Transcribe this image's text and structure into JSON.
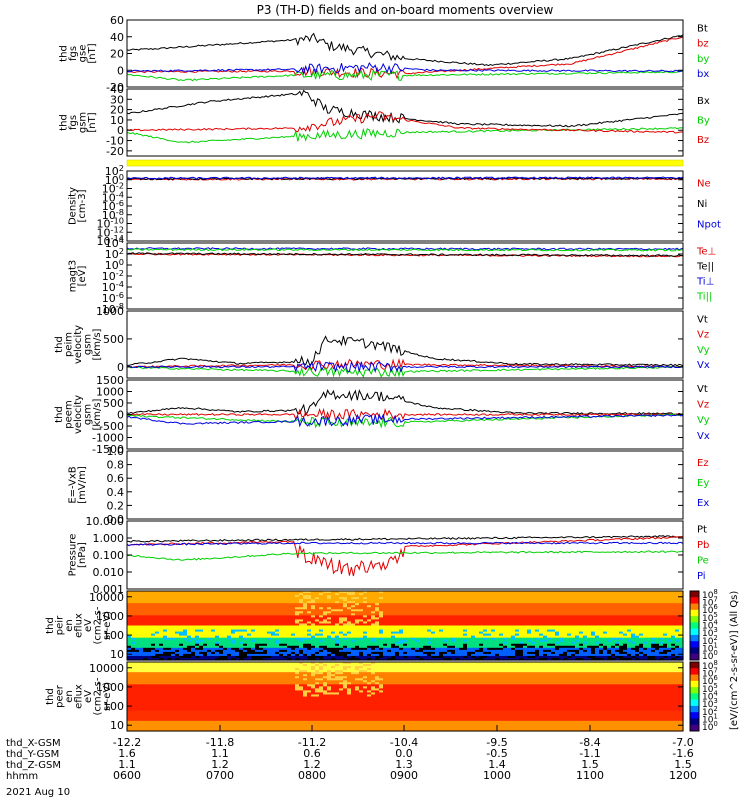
{
  "title": "P3 (TH-D) fields and on-board moments overview",
  "date_label": "2021 Aug 10",
  "colors": {
    "black": "#000000",
    "red": "#e00000",
    "green": "#00d000",
    "blue": "#0000e0",
    "yellow": "#ffff00",
    "frame": "#000000"
  },
  "chart_data": [
    {
      "type": "line",
      "id": "fgs-gse",
      "ylabel": [
        "thd",
        "fgs",
        "gse",
        "[nT]"
      ],
      "ylim": [
        -20,
        60
      ],
      "ticks": [
        "60",
        "40",
        "20",
        "0",
        "-20"
      ],
      "tick_values": [
        60,
        40,
        20,
        0,
        -20
      ],
      "series": [
        {
          "name": "Bt",
          "color": "#000000",
          "keypoints": [
            [
              0,
              24
            ],
            [
              0.06,
              26
            ],
            [
              0.2,
              32
            ],
            [
              0.34,
              38
            ],
            [
              0.36,
              30
            ],
            [
              0.5,
              14
            ],
            [
              0.65,
              6
            ],
            [
              0.8,
              14
            ],
            [
              1.0,
              42
            ]
          ]
        },
        {
          "name": "bz",
          "color": "#e00000",
          "keypoints": [
            [
              0,
              -2
            ],
            [
              0.3,
              -1
            ],
            [
              0.5,
              -4
            ],
            [
              0.8,
              8
            ],
            [
              1.0,
              40
            ]
          ]
        },
        {
          "name": "by",
          "color": "#00d000",
          "keypoints": [
            [
              0,
              -5
            ],
            [
              0.1,
              -12
            ],
            [
              0.3,
              -6
            ],
            [
              0.5,
              -6
            ],
            [
              1.0,
              -2
            ]
          ]
        },
        {
          "name": "bx",
          "color": "#0000e0",
          "keypoints": [
            [
              0,
              -1
            ],
            [
              0.3,
              1
            ],
            [
              0.45,
              4
            ],
            [
              0.55,
              0
            ],
            [
              1.0,
              -1
            ]
          ]
        }
      ],
      "legend": [
        "Bt",
        "bz",
        "by",
        "bx"
      ]
    },
    {
      "type": "line",
      "id": "fgs-gsm",
      "ylabel": [
        "thd",
        "fgs",
        "gsm",
        "[nT]"
      ],
      "ylim": [
        -25,
        40
      ],
      "ticks": [
        "40",
        "30",
        "20",
        "10",
        "0",
        "-10",
        "-20"
      ],
      "tick_values": [
        40,
        30,
        20,
        10,
        0,
        -10,
        -20
      ],
      "series": [
        {
          "name": "Bx",
          "color": "#000000",
          "keypoints": [
            [
              0,
              16
            ],
            [
              0.05,
              20
            ],
            [
              0.15,
              28
            ],
            [
              0.32,
              36
            ],
            [
              0.36,
              20
            ],
            [
              0.45,
              14
            ],
            [
              0.6,
              6
            ],
            [
              0.8,
              4
            ],
            [
              1.0,
              16
            ]
          ]
        },
        {
          "name": "By",
          "color": "#00d000",
          "keypoints": [
            [
              0,
              -2
            ],
            [
              0.1,
              -12
            ],
            [
              0.3,
              -6
            ],
            [
              0.5,
              -2
            ],
            [
              1.0,
              2
            ]
          ]
        },
        {
          "name": "Bz",
          "color": "#e00000",
          "keypoints": [
            [
              0,
              0
            ],
            [
              0.3,
              2
            ],
            [
              0.45,
              14
            ],
            [
              0.6,
              2
            ],
            [
              1.0,
              -2
            ]
          ]
        }
      ],
      "legend": [
        "Bx",
        "By",
        "Bz"
      ]
    },
    {
      "type": "line",
      "id": "density",
      "log": true,
      "ylabel": [
        "Density",
        "[cm-3]"
      ],
      "ylim": [
        -14,
        2
      ],
      "ticks": [
        "10^2",
        "10^0",
        "10^-2",
        "10^-4",
        "10^-6",
        "10^-8",
        "10^-10",
        "10^-12",
        "10^-14"
      ],
      "tick_values": [
        2,
        0,
        -2,
        -4,
        -6,
        -8,
        -10,
        -12,
        -14
      ],
      "series": [
        {
          "name": "Ne",
          "color": "#e00000",
          "keypoints": [
            [
              0,
              0.1
            ],
            [
              1.0,
              0.2
            ]
          ]
        },
        {
          "name": "Ni",
          "color": "#000000",
          "keypoints": [
            [
              0,
              0.2
            ],
            [
              1.0,
              0.3
            ]
          ]
        },
        {
          "name": "Npot",
          "color": "#0000e0",
          "keypoints": [
            [
              0,
              0.35
            ],
            [
              1.0,
              0.45
            ]
          ]
        }
      ],
      "legend": [
        "Ne",
        "Ni",
        "Npot"
      ]
    },
    {
      "type": "line",
      "id": "temperature",
      "log": true,
      "ylabel": [
        "magt3",
        "[eV]"
      ],
      "ylim": [
        -8,
        4
      ],
      "ticks": [
        "10^4",
        "10^2",
        "10^0",
        "10^-2",
        "10^-4",
        "10^-6",
        "10^-8"
      ],
      "tick_values": [
        4,
        2,
        0,
        -2,
        -4,
        -6,
        -8
      ],
      "series": [
        {
          "name": "Te⊥",
          "color": "#e00000",
          "keypoints": [
            [
              0,
              2.0
            ],
            [
              1.0,
              1.6
            ]
          ]
        },
        {
          "name": "Te||",
          "color": "#000000",
          "keypoints": [
            [
              0,
              2.1
            ],
            [
              1.0,
              1.7
            ]
          ]
        },
        {
          "name": "Ti⊥",
          "color": "#0000e0",
          "keypoints": [
            [
              0,
              3.0
            ],
            [
              1.0,
              2.9
            ]
          ]
        },
        {
          "name": "Ti||",
          "color": "#00d000",
          "keypoints": [
            [
              0,
              2.8
            ],
            [
              1.0,
              2.7
            ]
          ]
        }
      ],
      "legend": [
        "Te⊥",
        "Te||",
        "Ti⊥",
        "Ti||"
      ]
    },
    {
      "type": "line",
      "id": "peim-velocity",
      "ylabel": [
        "thd",
        "peim",
        "velocity",
        "gsm",
        "[km/s]"
      ],
      "ylim": [
        -200,
        1000
      ],
      "ticks": [
        "1000",
        "500",
        "0"
      ],
      "tick_values": [
        1000,
        500,
        0
      ],
      "series": [
        {
          "name": "Vt",
          "color": "#000000",
          "keypoints": [
            [
              0,
              30
            ],
            [
              0.1,
              150
            ],
            [
              0.2,
              60
            ],
            [
              0.33,
              100
            ],
            [
              0.36,
              500
            ],
            [
              0.45,
              400
            ],
            [
              0.55,
              150
            ],
            [
              0.7,
              50
            ],
            [
              1.0,
              30
            ]
          ]
        },
        {
          "name": "Vz",
          "color": "#e00000",
          "keypoints": [
            [
              0,
              0
            ],
            [
              0.4,
              50
            ],
            [
              1.0,
              0
            ]
          ]
        },
        {
          "name": "Vy",
          "color": "#00d000",
          "keypoints": [
            [
              0,
              -10
            ],
            [
              0.4,
              -100
            ],
            [
              1.0,
              -5
            ]
          ]
        },
        {
          "name": "Vx",
          "color": "#0000e0",
          "keypoints": [
            [
              0,
              0
            ],
            [
              1.0,
              0
            ]
          ]
        }
      ],
      "legend": [
        "Vt",
        "Vz",
        "Vy",
        "Vx"
      ]
    },
    {
      "type": "line",
      "id": "peem-velocity",
      "ylabel": [
        "thd",
        "peem",
        "velocity",
        "gsm",
        "[km/s]"
      ],
      "ylim": [
        -1500,
        1500
      ],
      "ticks": [
        "1500",
        "1000",
        "500",
        "0",
        "-500",
        "-1000",
        "-1500"
      ],
      "tick_values": [
        1500,
        1000,
        500,
        0,
        -500,
        -1000,
        -1500
      ],
      "series": [
        {
          "name": "Vt",
          "color": "#000000",
          "keypoints": [
            [
              0,
              50
            ],
            [
              0.1,
              300
            ],
            [
              0.2,
              120
            ],
            [
              0.33,
              200
            ],
            [
              0.36,
              900
            ],
            [
              0.46,
              800
            ],
            [
              0.55,
              300
            ],
            [
              0.7,
              60
            ],
            [
              1.0,
              40
            ]
          ]
        },
        {
          "name": "Vz",
          "color": "#e00000",
          "keypoints": [
            [
              0,
              0
            ],
            [
              1.0,
              0
            ]
          ]
        },
        {
          "name": "Vy",
          "color": "#00d000",
          "keypoints": [
            [
              0,
              -50
            ],
            [
              0.4,
              -400
            ],
            [
              1.0,
              0
            ]
          ]
        },
        {
          "name": "Vx",
          "color": "#0000e0",
          "keypoints": [
            [
              0,
              -100
            ],
            [
              0.1,
              -400
            ],
            [
              0.5,
              -200
            ],
            [
              1.0,
              -30
            ]
          ]
        }
      ],
      "legend": [
        "Vt",
        "Vz",
        "Vy",
        "Vx"
      ]
    },
    {
      "type": "line",
      "id": "e-field",
      "ylabel": [
        "E=-VxB",
        "[mV/m]"
      ],
      "ylim": [
        0,
        1
      ],
      "ticks": [
        "1.0",
        "0.8",
        "0.6",
        "0.4",
        "0.2",
        "0.0"
      ],
      "tick_values": [
        1.0,
        0.8,
        0.6,
        0.4,
        0.2,
        0.0
      ],
      "series": [],
      "legend": [
        "Ez",
        "Ey",
        "Ex"
      ],
      "legend_colors": [
        "#e00000",
        "#00d000",
        "#0000e0"
      ]
    },
    {
      "type": "line",
      "id": "pressure",
      "log": true,
      "ylabel": [
        "Pressure",
        "[nPa]"
      ],
      "ylim": [
        -3,
        1
      ],
      "ticks": [
        "10.000",
        "1.000",
        "0.100",
        "0.010",
        "0.001"
      ],
      "tick_values": [
        1,
        0,
        -1,
        -2,
        -3
      ],
      "series": [
        {
          "name": "Pt",
          "color": "#000000",
          "keypoints": [
            [
              0,
              -0.2
            ],
            [
              0.3,
              -0.1
            ],
            [
              0.5,
              -0.05
            ],
            [
              1.0,
              0.1
            ]
          ]
        },
        {
          "name": "Pb",
          "color": "#e00000",
          "keypoints": [
            [
              0,
              -0.4
            ],
            [
              0.3,
              -0.2
            ],
            [
              0.4,
              -1.5
            ],
            [
              0.5,
              -0.5
            ],
            [
              1.0,
              0.05
            ]
          ]
        },
        {
          "name": "Pe",
          "color": "#00d000",
          "keypoints": [
            [
              0,
              -1.0
            ],
            [
              0.1,
              -1.3
            ],
            [
              0.3,
              -0.9
            ],
            [
              1.0,
              -0.8
            ]
          ]
        },
        {
          "name": "Pi",
          "color": "#0000e0",
          "keypoints": [
            [
              0,
              -0.4
            ],
            [
              0.3,
              -0.3
            ],
            [
              1.0,
              -0.3
            ]
          ]
        }
      ],
      "legend": [
        "Pt",
        "Pb",
        "Pe",
        "Pi"
      ]
    },
    {
      "type": "heatmap",
      "id": "peir-spectrogram",
      "ylabel": [
        "thd",
        "peir",
        "en",
        "eflux",
        "eV",
        "(cm2-s-",
        "sr-eV)"
      ],
      "ylim": [
        5,
        20000
      ],
      "ticks": [
        "10000",
        "1000",
        "100",
        "10"
      ],
      "tick_values": [
        10000,
        1000,
        100,
        10
      ],
      "profile": [
        [
          0,
          "#ffaa00"
        ],
        [
          0.15,
          "#ff6000"
        ],
        [
          0.35,
          "#ff2000"
        ],
        [
          0.5,
          "#ffff00"
        ],
        [
          0.65,
          "#00e080"
        ],
        [
          0.8,
          "#0060ff"
        ],
        [
          0.92,
          "#000080"
        ],
        [
          1.0,
          "#000000"
        ]
      ]
    },
    {
      "type": "heatmap",
      "id": "peer-spectrogram",
      "ylabel": [
        "thd",
        "peer",
        "en",
        "eflux",
        "eV",
        "(cm2-s-",
        "sr-eV)"
      ],
      "ylim": [
        5,
        20000
      ],
      "ticks": [
        "10000",
        "1000",
        "100",
        "10"
      ],
      "tick_values": [
        10000,
        1000,
        100,
        10
      ],
      "profile": [
        [
          0,
          "#ffff40"
        ],
        [
          0.12,
          "#ff8000"
        ],
        [
          0.3,
          "#ff2000"
        ],
        [
          0.7,
          "#ff3000"
        ],
        [
          0.85,
          "#ff9000"
        ],
        [
          1.0,
          "#ffd000"
        ]
      ]
    }
  ],
  "colorbar": {
    "ticks": [
      "10^8",
      "10^7",
      "10^6",
      "10^5",
      "10^4",
      "10^3",
      "10^2",
      "10^1",
      "10^0"
    ],
    "label": "[eV/(cm^2-s-sr-eV)] (All Qs)",
    "label2": "[eV/(cm^2-s-sr-eV)]"
  },
  "x_axis": {
    "rows": [
      {
        "label": "thd_X-GSM",
        "values": [
          "-12.2",
          "-11.8",
          "-11.2",
          "-10.4",
          "-9.5",
          "-8.4",
          "-7.0"
        ]
      },
      {
        "label": "thd_Y-GSM",
        "values": [
          "1.6",
          "1.1",
          "0.6",
          "0.0",
          "-0.5",
          "-1.1",
          "-1.6"
        ]
      },
      {
        "label": "thd_Z-GSM",
        "values": [
          "1.1",
          "1.2",
          "1.2",
          "1.3",
          "1.4",
          "1.5",
          "1.5"
        ]
      },
      {
        "label": "hhmm",
        "values": [
          "0600",
          "0700",
          "0800",
          "0900",
          "1000",
          "1100",
          "1200"
        ]
      }
    ]
  }
}
